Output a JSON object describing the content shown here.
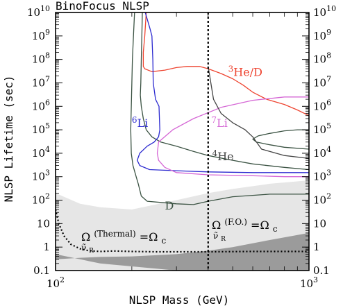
{
  "chart_data": {
    "type": "line",
    "title": "BinoFocus NLSP",
    "xlabel": "NLSP Mass (GeV)",
    "ylabel": "NLSP Lifetime (sec)",
    "x_scale": "log",
    "y_scale": "log",
    "xlim": [
      100,
      1000
    ],
    "ylim": [
      0.1,
      10000000000
    ],
    "x_ticks": [
      {
        "value": 100,
        "base": "10",
        "exp": "2"
      },
      {
        "value": 1000,
        "base": "10",
        "exp": "3"
      }
    ],
    "y_ticks": [
      {
        "value": 0.1,
        "label": "0.1"
      },
      {
        "value": 1,
        "label": "1"
      },
      {
        "value": 10,
        "label": "10"
      },
      {
        "value": 100,
        "base": "10",
        "exp": "2"
      },
      {
        "value": 1000,
        "base": "10",
        "exp": "3"
      },
      {
        "value": 10000,
        "base": "10",
        "exp": "4"
      },
      {
        "value": 100000,
        "base": "10",
        "exp": "5"
      },
      {
        "value": 1000000,
        "base": "10",
        "exp": "6"
      },
      {
        "value": 10000000,
        "base": "10",
        "exp": "7"
      },
      {
        "value": 100000000,
        "base": "10",
        "exp": "8"
      },
      {
        "value": 1000000000,
        "base": "10",
        "exp": "9"
      },
      {
        "value": 10000000000,
        "base": "10",
        "exp": "10"
      }
    ],
    "regions": [
      {
        "id": "light-band",
        "color": "#e6e6e6",
        "points": [
          [
            100,
            200
          ],
          [
            125,
            70
          ],
          [
            150,
            50
          ],
          [
            200,
            40
          ],
          [
            300,
            100
          ],
          [
            400,
            200
          ],
          [
            500,
            300
          ],
          [
            700,
            500
          ],
          [
            1000,
            700
          ],
          [
            1000,
            0.1
          ],
          [
            100,
            0.1
          ]
        ]
      },
      {
        "id": "dark-band",
        "color": "#9b9b9b",
        "points": [
          [
            100,
            0.5
          ],
          [
            150,
            0.2
          ],
          [
            200,
            0.15
          ],
          [
            250,
            0.12
          ],
          [
            300,
            0.1
          ],
          [
            1000,
            0.1
          ],
          [
            1000,
            4
          ],
          [
            700,
            2
          ],
          [
            500,
            1
          ],
          [
            400,
            0.7
          ],
          [
            300,
            0.5
          ],
          [
            250,
            0.45
          ],
          [
            200,
            0.4
          ],
          [
            150,
            0.38
          ],
          [
            125,
            0.35
          ],
          [
            100,
            0.3
          ]
        ]
      }
    ],
    "series": [
      {
        "id": "D",
        "label": "D",
        "color": "#3a5242",
        "width": 1.3,
        "points": [
          [
            205,
            10000000000
          ],
          [
            203,
            1000000000
          ],
          [
            201,
            100000000
          ],
          [
            200,
            10000000
          ],
          [
            199,
            1000000
          ],
          [
            198,
            100000
          ],
          [
            199,
            10000
          ],
          [
            202,
            3000
          ],
          [
            208,
            1000
          ],
          [
            212,
            500
          ],
          [
            218,
            150
          ],
          [
            230,
            90
          ],
          [
            260,
            80
          ],
          [
            300,
            70
          ],
          [
            350,
            65
          ],
          [
            400,
            90
          ],
          [
            500,
            140
          ],
          [
            700,
            180
          ],
          [
            1000,
            180
          ]
        ]
      },
      {
        "id": "D-inner",
        "color": "#3a5242",
        "width": 1.3,
        "points": [
          [
            220,
            10000000000
          ],
          [
            219,
            1000000000
          ],
          [
            218,
            100000000
          ],
          [
            217,
            10000000
          ],
          [
            216,
            3000000
          ],
          [
            218,
            1000000
          ],
          [
            222,
            300000
          ],
          [
            228,
            100000
          ],
          [
            240,
            50000
          ],
          [
            260,
            30000
          ],
          [
            300,
            20000
          ],
          [
            350,
            12000
          ],
          [
            400,
            8000
          ],
          [
            500,
            5000
          ],
          [
            600,
            3500
          ],
          [
            800,
            2500
          ],
          [
            1000,
            2000
          ]
        ]
      },
      {
        "id": "D-island",
        "color": "#3a5242",
        "width": 1.3,
        "points": [
          [
            1000,
            15000
          ],
          [
            800,
            18000
          ],
          [
            700,
            23000
          ],
          [
            620,
            30000
          ],
          [
            600,
            40000
          ],
          [
            630,
            55000
          ],
          [
            700,
            70000
          ],
          [
            800,
            90000
          ],
          [
            900,
            100000
          ],
          [
            1000,
            100000
          ]
        ]
      },
      {
        "id": "He3D",
        "label": "3He/D",
        "color": "#ee4430",
        "width": 1.3,
        "points": [
          [
            228,
            10000000000
          ],
          [
            225,
            1000000000
          ],
          [
            222,
            200000000
          ],
          [
            222,
            50000000
          ],
          [
            225,
            40000000
          ],
          [
            240,
            30000000
          ],
          [
            270,
            35000000
          ],
          [
            300,
            45000000
          ],
          [
            330,
            50000000
          ],
          [
            370,
            50000000
          ],
          [
            400,
            40000000
          ],
          [
            450,
            25000000
          ],
          [
            500,
            15000000
          ],
          [
            550,
            8000000
          ],
          [
            600,
            4000000
          ],
          [
            680,
            2000000
          ],
          [
            800,
            1200000
          ],
          [
            900,
            700000
          ],
          [
            1000,
            400000
          ]
        ]
      },
      {
        "id": "Li6",
        "label": "6Li",
        "color": "#2c2ad0",
        "width": 1.3,
        "points": [
          [
            226,
            10000000000
          ],
          [
            236,
            2000000000
          ],
          [
            240,
            1000000000
          ],
          [
            242,
            100000000
          ],
          [
            243,
            10000000
          ],
          [
            248,
            2000000
          ],
          [
            256,
            1000000
          ],
          [
            258,
            100000
          ],
          [
            255,
            50000
          ],
          [
            245,
            30000
          ],
          [
            230,
            20000
          ],
          [
            215,
            10000
          ],
          [
            210,
            5000
          ],
          [
            215,
            3000
          ],
          [
            235,
            2000
          ],
          [
            300,
            1800
          ],
          [
            400,
            1600
          ],
          [
            600,
            1500
          ],
          [
            1000,
            1500
          ]
        ]
      },
      {
        "id": "Li7",
        "label": "7Li",
        "color": "#d566d5",
        "width": 1.3,
        "points": [
          [
            1000,
            2500000
          ],
          [
            800,
            2500000
          ],
          [
            600,
            1800000
          ],
          [
            450,
            900000
          ],
          [
            350,
            300000
          ],
          [
            290,
            100000
          ],
          [
            255,
            30000
          ],
          [
            252,
            10000
          ],
          [
            255,
            5000
          ],
          [
            270,
            2500
          ],
          [
            300,
            1500
          ],
          [
            400,
            1200
          ],
          [
            600,
            1100
          ],
          [
            800,
            1000
          ],
          [
            1000,
            1000
          ]
        ]
      },
      {
        "id": "He4",
        "label": "4He",
        "color": "#444444",
        "width": 1.3,
        "points": [
          [
            400,
            50000000
          ],
          [
            420,
            2000000
          ],
          [
            450,
            500000
          ],
          [
            500,
            200000
          ],
          [
            560,
            100000
          ],
          [
            600,
            50000
          ],
          [
            650,
            15000
          ],
          [
            800,
            8000
          ],
          [
            1000,
            6000
          ]
        ]
      },
      {
        "id": "thermal",
        "color": "#000000",
        "width": 2.2,
        "dash": "2 3",
        "points": [
          [
            100,
            40
          ],
          [
            103,
            10
          ],
          [
            108,
            3
          ],
          [
            115,
            1.3
          ],
          [
            125,
            0.85
          ],
          [
            135,
            0.7
          ],
          [
            150,
            0.65
          ],
          [
            170,
            0.68
          ],
          [
            200,
            0.65
          ],
          [
            250,
            0.63
          ],
          [
            300,
            0.63
          ],
          [
            400,
            0.63
          ],
          [
            600,
            0.65
          ],
          [
            1000,
            0.65
          ]
        ]
      },
      {
        "id": "fo-line",
        "color": "#000000",
        "width": 2.2,
        "dash": "3 3",
        "points": [
          [
            400,
            10000000000
          ],
          [
            400,
            0.1
          ]
        ]
      }
    ],
    "annotations": [
      {
        "id": "he3d-label",
        "mark": "3",
        "text": "He/D",
        "color": "#ee4430",
        "x": 480,
        "y": 20000000
      },
      {
        "id": "li6-label",
        "mark": "6",
        "text": "Li",
        "color": "#2c2ad0",
        "x": 200,
        "y": 130000
      },
      {
        "id": "li7-label",
        "mark": "7",
        "text": "Li",
        "color": "#d566d5",
        "x": 412,
        "y": 130000
      },
      {
        "id": "he4-label",
        "mark": "4",
        "text": "He",
        "color": "#444444",
        "x": 415,
        "y": 5000
      },
      {
        "id": "d-label",
        "text": "D",
        "color": "#3a5242",
        "x": 270,
        "y": 40
      }
    ],
    "omega_thermal": {
      "base": "Ω",
      "sup": "(Thermal)",
      "sub": "ν̃",
      "subsub": "R",
      "rhs": "=Ω",
      "rhs_sub": "c"
    },
    "omega_fo": {
      "base": "Ω",
      "sup": "(F.O.)",
      "sub": "ν̃",
      "subsub": "R",
      "rhs": "=Ω",
      "rhs_sub": "c"
    },
    "grid": false
  }
}
